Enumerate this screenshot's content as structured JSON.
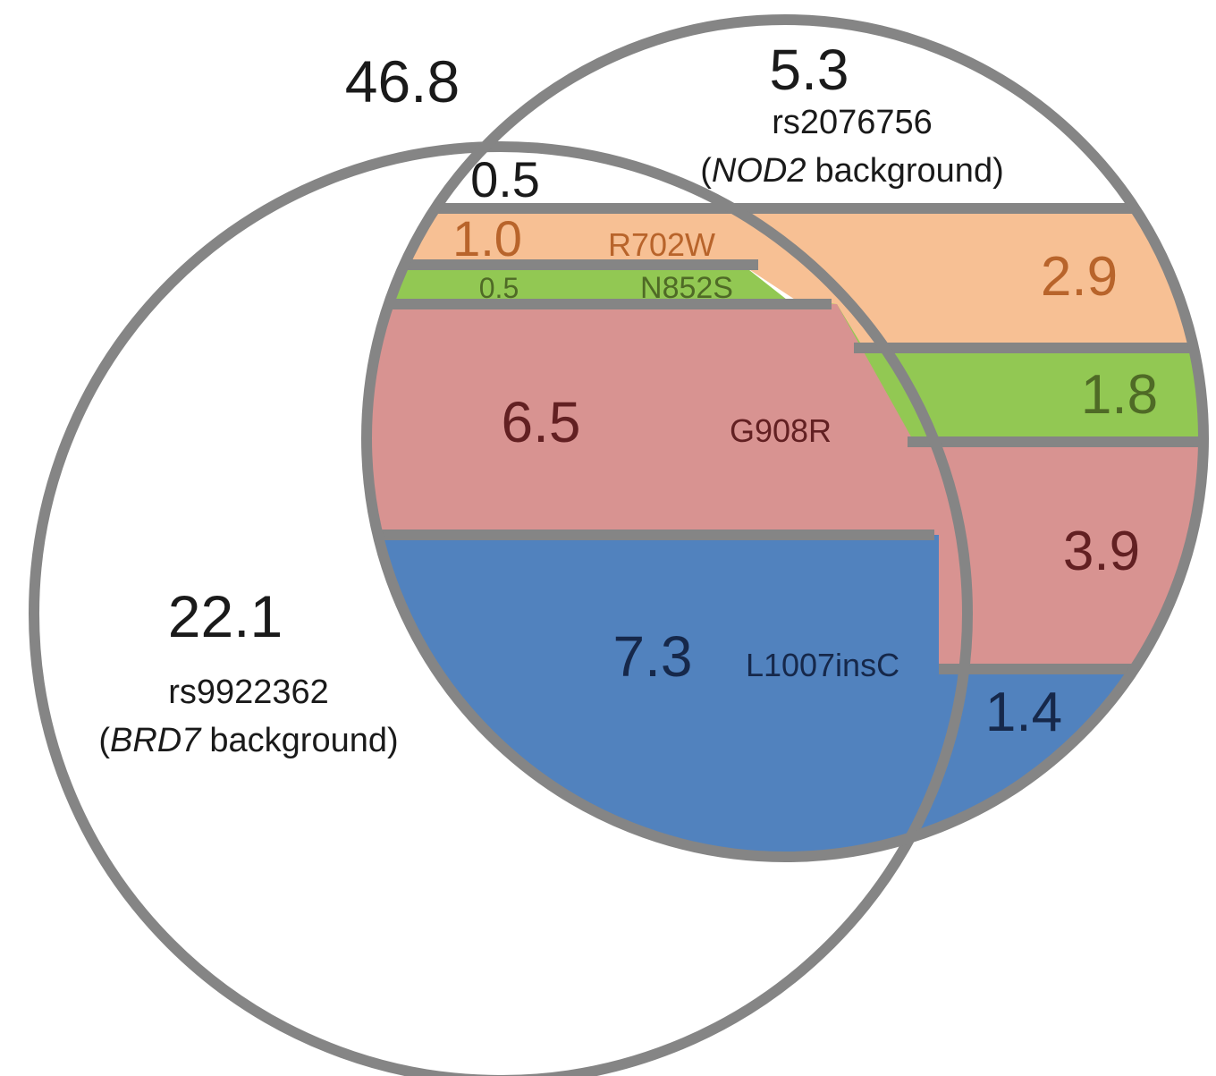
{
  "colors": {
    "outline": "#858585",
    "r702w_fill": "#f7c094",
    "n852s_fill": "#92c853",
    "g908r_fill": "#d89391",
    "l1007insc_fill": "#5182be",
    "r702w_text": "#b8642b",
    "n852s_text": "#4f6a26",
    "g908r_text": "#622022",
    "l1007insc_text": "#16284a",
    "default_text": "#1a1a1a"
  },
  "outside": {
    "value": "46.8"
  },
  "nod2_set": {
    "value": "5.3",
    "snp": "rs2076756",
    "gene": "NOD2",
    "suffix": "background)",
    "open_paren": "("
  },
  "brd7_set": {
    "value": "22.1",
    "snp": "rs9922362",
    "gene": "BRD7",
    "suffix": "background)",
    "open_paren": "("
  },
  "intersection_top": {
    "value": "0.5"
  },
  "variants": {
    "r702w": {
      "name": "R702W",
      "overlap_value": "1.0",
      "nod2_only_value": "2.9"
    },
    "n852s": {
      "name": "N852S",
      "overlap_value": "0.5",
      "nod2_only_value": "1.8"
    },
    "g908r": {
      "name": "G908R",
      "overlap_value": "6.5",
      "nod2_only_value": "3.9"
    },
    "l1007insc": {
      "name": "L1007insC",
      "overlap_value": "7.3",
      "nod2_only_value": "1.4"
    }
  }
}
